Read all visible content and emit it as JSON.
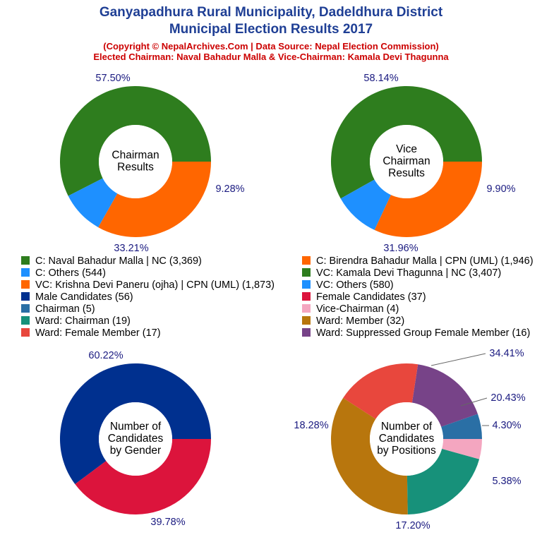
{
  "header": {
    "title_line1": "Ganyapadhura Rural Municipality, Dadeldhura District",
    "title_line2": "Municipal Election Results 2017",
    "subtitle_line1": "(Copyright © NepalArchives.Com | Data Source: Nepal Election Commission)",
    "subtitle_line2": "Elected Chairman: Naval Bahadur Malla & Vice-Chairman: Kamala Devi Thagunna"
  },
  "legend": {
    "left": [
      {
        "label": "C: Naval Bahadur Malla | NC (3,369)",
        "color": "#2e7d1e"
      },
      {
        "label": "C: Others (544)",
        "color": "#1e90ff"
      },
      {
        "label": "VC: Krishna Devi Paneru (ojha) | CPN (UML) (1,873)",
        "color": "#ff6600"
      },
      {
        "label": "Male Candidates (56)",
        "color": "#00308f"
      },
      {
        "label": "Chairman (5)",
        "color": "#2a6fa5"
      },
      {
        "label": "Ward: Chairman (19)",
        "color": "#17917a"
      },
      {
        "label": "Ward: Female Member (17)",
        "color": "#e8473d"
      }
    ],
    "right": [
      {
        "label": "C: Birendra Bahadur Malla | CPN (UML) (1,946)",
        "color": "#ff6600"
      },
      {
        "label": "VC: Kamala Devi Thagunna | NC (3,407)",
        "color": "#2e7d1e"
      },
      {
        "label": "VC: Others (580)",
        "color": "#1e90ff"
      },
      {
        "label": "Female Candidates (37)",
        "color": "#dc143c"
      },
      {
        "label": "Vice-Chairman (4)",
        "color": "#f4a6c0"
      },
      {
        "label": "Ward: Member (32)",
        "color": "#b8760d"
      },
      {
        "label": "Ward: Suppressed Group Female Member (16)",
        "color": "#774388"
      }
    ]
  },
  "chart_data": [
    {
      "type": "pie",
      "center_label": [
        "Chairman",
        "Results"
      ],
      "slices": [
        {
          "name": "C: Naval Bahadur Malla | NC",
          "value": 3369,
          "label": "57.50%",
          "color": "#2e7d1e"
        },
        {
          "name": "C: Others",
          "value": 544,
          "label": "9.28%",
          "color": "#1e90ff"
        },
        {
          "name": "C: Birendra Bahadur Malla | CPN (UML)",
          "value": 1946,
          "label": "33.21%",
          "color": "#ff6600"
        }
      ]
    },
    {
      "type": "pie",
      "center_label": [
        "Vice",
        "Chairman",
        "Results"
      ],
      "slices": [
        {
          "name": "VC: Kamala Devi Thagunna | NC",
          "value": 3407,
          "label": "58.14%",
          "color": "#2e7d1e"
        },
        {
          "name": "VC: Others",
          "value": 580,
          "label": "9.90%",
          "color": "#1e90ff"
        },
        {
          "name": "VC: Krishna Devi Paneru (ojha) | CPN (UML)",
          "value": 1873,
          "label": "31.96%",
          "color": "#ff6600"
        }
      ]
    },
    {
      "type": "pie",
      "center_label": [
        "Number of",
        "Candidates",
        "by Gender"
      ],
      "slices": [
        {
          "name": "Male Candidates",
          "value": 56,
          "label": "60.22%",
          "color": "#00308f"
        },
        {
          "name": "Female Candidates",
          "value": 37,
          "label": "39.78%",
          "color": "#dc143c"
        }
      ]
    },
    {
      "type": "pie",
      "center_label": [
        "Number of",
        "Candidates",
        "by Positions"
      ],
      "slices": [
        {
          "name": "Chairman",
          "value": 5,
          "label": "5.38%",
          "color": "#2a6fa5"
        },
        {
          "name": "Ward: Suppressed Group Female Member",
          "value": 16,
          "label": "17.20%",
          "color": "#774388"
        },
        {
          "name": "Ward: Female Member",
          "value": 17,
          "label": "18.28%",
          "color": "#e8473d"
        },
        {
          "name": "Ward: Member",
          "value": 32,
          "label": "34.41%",
          "color": "#b8760d"
        },
        {
          "name": "Ward: Chairman",
          "value": 19,
          "label": "20.43%",
          "color": "#17917a"
        },
        {
          "name": "Vice-Chairman",
          "value": 4,
          "label": "4.30%",
          "color": "#f4a6c0"
        }
      ]
    }
  ]
}
